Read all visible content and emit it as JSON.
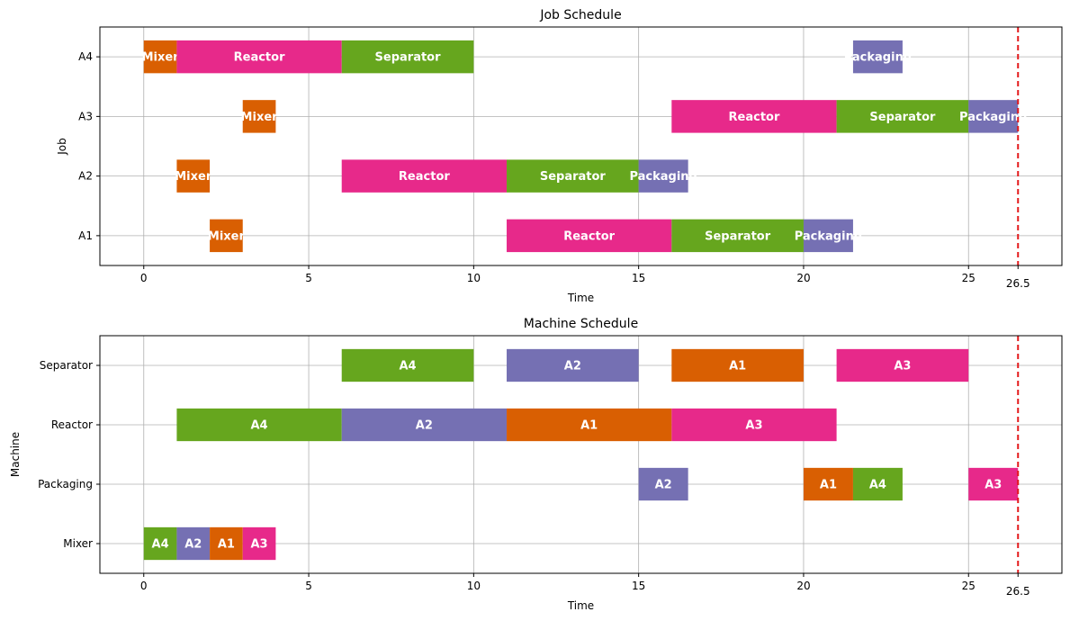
{
  "colors": {
    "Mixer": "#d95f02",
    "Reactor": "#e7298a",
    "Separator": "#66a61e",
    "Packaging": "#7570b3",
    "A1": "#d95f02",
    "A2": "#7570b3",
    "A3": "#e7298a",
    "A4": "#66a61e",
    "makespan_line": "#e41a1c",
    "grid": "#b0b0b0"
  },
  "chart_data": [
    {
      "type": "gantt",
      "title": "Job Schedule",
      "xlabel": "Time",
      "ylabel": "Job",
      "xlim": [
        -1.33,
        27.83
      ],
      "xticks": [
        0,
        5,
        10,
        15,
        20,
        25
      ],
      "makespan": 26.5,
      "makespan_label": "26.5",
      "grid": true,
      "categories": [
        "A1",
        "A2",
        "A3",
        "A4"
      ],
      "tasks": [
        {
          "row": "A4",
          "start": 0,
          "end": 1,
          "label": "Mixer",
          "color_key": "Mixer"
        },
        {
          "row": "A4",
          "start": 1,
          "end": 6,
          "label": "Reactor",
          "color_key": "Reactor"
        },
        {
          "row": "A4",
          "start": 6,
          "end": 10,
          "label": "Separator",
          "color_key": "Separator"
        },
        {
          "row": "A4",
          "start": 21.5,
          "end": 23,
          "label": "Packaging",
          "color_key": "Packaging"
        },
        {
          "row": "A3",
          "start": 3,
          "end": 4,
          "label": "Mixer",
          "color_key": "Mixer"
        },
        {
          "row": "A3",
          "start": 16,
          "end": 21,
          "label": "Reactor",
          "color_key": "Reactor"
        },
        {
          "row": "A3",
          "start": 21,
          "end": 25,
          "label": "Separator",
          "color_key": "Separator"
        },
        {
          "row": "A3",
          "start": 25,
          "end": 26.5,
          "label": "Packaging",
          "color_key": "Packaging"
        },
        {
          "row": "A2",
          "start": 1,
          "end": 2,
          "label": "Mixer",
          "color_key": "Mixer"
        },
        {
          "row": "A2",
          "start": 6,
          "end": 11,
          "label": "Reactor",
          "color_key": "Reactor"
        },
        {
          "row": "A2",
          "start": 11,
          "end": 15,
          "label": "Separator",
          "color_key": "Separator"
        },
        {
          "row": "A2",
          "start": 15,
          "end": 16.5,
          "label": "Packaging",
          "color_key": "Packaging"
        },
        {
          "row": "A1",
          "start": 2,
          "end": 3,
          "label": "Mixer",
          "color_key": "Mixer"
        },
        {
          "row": "A1",
          "start": 11,
          "end": 16,
          "label": "Reactor",
          "color_key": "Reactor"
        },
        {
          "row": "A1",
          "start": 16,
          "end": 20,
          "label": "Separator",
          "color_key": "Separator"
        },
        {
          "row": "A1",
          "start": 20,
          "end": 21.5,
          "label": "Packaging",
          "color_key": "Packaging"
        }
      ]
    },
    {
      "type": "gantt",
      "title": "Machine Schedule",
      "xlabel": "Time",
      "ylabel": "Machine",
      "xlim": [
        -1.33,
        27.83
      ],
      "xticks": [
        0,
        5,
        10,
        15,
        20,
        25
      ],
      "makespan": 26.5,
      "makespan_label": "26.5",
      "grid": true,
      "categories": [
        "Mixer",
        "Packaging",
        "Reactor",
        "Separator"
      ],
      "tasks": [
        {
          "row": "Separator",
          "start": 6,
          "end": 10,
          "label": "A4",
          "color_key": "A4"
        },
        {
          "row": "Separator",
          "start": 11,
          "end": 15,
          "label": "A2",
          "color_key": "A2"
        },
        {
          "row": "Separator",
          "start": 16,
          "end": 20,
          "label": "A1",
          "color_key": "A1"
        },
        {
          "row": "Separator",
          "start": 21,
          "end": 25,
          "label": "A3",
          "color_key": "A3"
        },
        {
          "row": "Reactor",
          "start": 1,
          "end": 6,
          "label": "A4",
          "color_key": "A4"
        },
        {
          "row": "Reactor",
          "start": 6,
          "end": 11,
          "label": "A2",
          "color_key": "A2"
        },
        {
          "row": "Reactor",
          "start": 11,
          "end": 16,
          "label": "A1",
          "color_key": "A1"
        },
        {
          "row": "Reactor",
          "start": 16,
          "end": 21,
          "label": "A3",
          "color_key": "A3"
        },
        {
          "row": "Packaging",
          "start": 15,
          "end": 16.5,
          "label": "A2",
          "color_key": "A2"
        },
        {
          "row": "Packaging",
          "start": 20,
          "end": 21.5,
          "label": "A1",
          "color_key": "A1"
        },
        {
          "row": "Packaging",
          "start": 21.5,
          "end": 23,
          "label": "A4",
          "color_key": "A4"
        },
        {
          "row": "Packaging",
          "start": 25,
          "end": 26.5,
          "label": "A3",
          "color_key": "A3"
        },
        {
          "row": "Mixer",
          "start": 0,
          "end": 1,
          "label": "A4",
          "color_key": "A4"
        },
        {
          "row": "Mixer",
          "start": 1,
          "end": 2,
          "label": "A2",
          "color_key": "A2"
        },
        {
          "row": "Mixer",
          "start": 2,
          "end": 3,
          "label": "A1",
          "color_key": "A1"
        },
        {
          "row": "Mixer",
          "start": 3,
          "end": 4,
          "label": "A3",
          "color_key": "A3"
        }
      ]
    }
  ]
}
